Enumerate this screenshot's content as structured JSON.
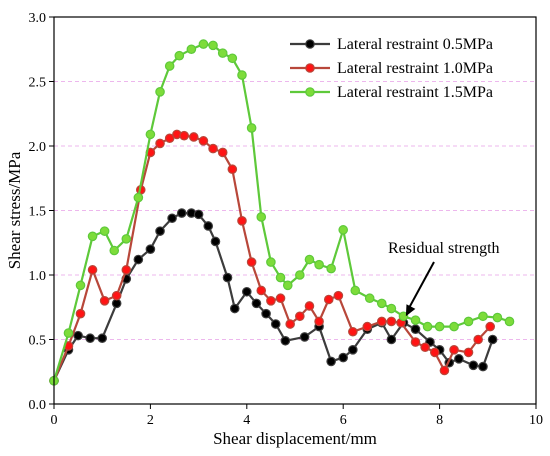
{
  "chart_data": {
    "type": "line",
    "title": "",
    "xlabel": "Shear displacement/mm",
    "ylabel": "Shear stress/MPa",
    "xlim": [
      0,
      10
    ],
    "ylim": [
      0,
      3.0
    ],
    "x_ticks": [
      "0",
      "2",
      "4",
      "6",
      "8",
      "10"
    ],
    "y_ticks": [
      "0.0",
      "0.5",
      "1.0",
      "1.5",
      "2.0",
      "2.5",
      "3.0"
    ],
    "grid": "horizontal dashed",
    "legend_position": "top-right",
    "annotations": [
      {
        "text": "Residual strength",
        "points_to": {
          "x": 7.3,
          "y": 0.68
        }
      }
    ],
    "series": [
      {
        "name": "Lateral restraint 0.5MPa",
        "color": "#3c3c3c",
        "marker_fill": "#000000",
        "x": [
          0.0,
          0.3,
          0.5,
          0.75,
          1.0,
          1.3,
          1.5,
          1.75,
          2.0,
          2.2,
          2.45,
          2.65,
          2.85,
          3.0,
          3.2,
          3.35,
          3.6,
          3.75,
          4.0,
          4.2,
          4.4,
          4.6,
          4.8,
          5.2,
          5.5,
          5.75,
          6.0,
          6.2,
          6.5,
          6.8,
          7.0,
          7.25,
          7.5,
          7.8,
          8.0,
          8.2,
          8.4,
          8.7,
          8.9,
          9.1
        ],
        "y": [
          0.18,
          0.42,
          0.53,
          0.51,
          0.51,
          0.78,
          0.97,
          1.12,
          1.2,
          1.34,
          1.44,
          1.48,
          1.48,
          1.47,
          1.38,
          1.26,
          0.98,
          0.74,
          0.87,
          0.78,
          0.7,
          0.62,
          0.49,
          0.52,
          0.6,
          0.33,
          0.36,
          0.42,
          0.58,
          0.63,
          0.5,
          0.63,
          0.58,
          0.48,
          0.42,
          0.32,
          0.35,
          0.3,
          0.29,
          0.5
        ]
      },
      {
        "name": "Lateral restraint 1.0MPa",
        "color": "#b8473a",
        "marker_fill": "#ff1414",
        "x": [
          0.0,
          0.3,
          0.55,
          0.8,
          1.05,
          1.3,
          1.5,
          1.8,
          2.0,
          2.2,
          2.4,
          2.55,
          2.7,
          2.9,
          3.1,
          3.3,
          3.5,
          3.7,
          3.9,
          4.1,
          4.3,
          4.5,
          4.7,
          4.9,
          5.1,
          5.3,
          5.5,
          5.7,
          5.9,
          6.2,
          6.5,
          6.8,
          7.0,
          7.2,
          7.5,
          7.7,
          7.9,
          8.1,
          8.3,
          8.6,
          8.8,
          9.05
        ],
        "y": [
          0.18,
          0.45,
          0.7,
          1.04,
          0.8,
          0.84,
          1.04,
          1.66,
          1.95,
          2.02,
          2.06,
          2.09,
          2.08,
          2.07,
          2.04,
          1.98,
          1.95,
          1.82,
          1.42,
          1.1,
          0.88,
          0.8,
          0.82,
          0.62,
          0.68,
          0.76,
          0.64,
          0.81,
          0.84,
          0.56,
          0.6,
          0.64,
          0.64,
          0.63,
          0.48,
          0.44,
          0.4,
          0.26,
          0.42,
          0.4,
          0.5,
          0.6
        ]
      },
      {
        "name": "Lateral restraint 1.5MPa",
        "color": "#5ec93a",
        "marker_fill": "#7ddc3a",
        "x": [
          0.0,
          0.3,
          0.55,
          0.8,
          1.05,
          1.25,
          1.5,
          1.75,
          2.0,
          2.2,
          2.4,
          2.6,
          2.85,
          3.1,
          3.3,
          3.5,
          3.7,
          3.9,
          4.1,
          4.3,
          4.5,
          4.7,
          4.85,
          5.1,
          5.3,
          5.5,
          5.75,
          6.0,
          6.25,
          6.55,
          6.8,
          7.0,
          7.25,
          7.5,
          7.75,
          8.0,
          8.3,
          8.6,
          8.9,
          9.2,
          9.45
        ],
        "y": [
          0.18,
          0.55,
          0.92,
          1.3,
          1.34,
          1.19,
          1.28,
          1.6,
          2.09,
          2.42,
          2.62,
          2.7,
          2.75,
          2.79,
          2.78,
          2.72,
          2.68,
          2.55,
          2.14,
          1.45,
          1.1,
          0.98,
          0.92,
          1.0,
          1.12,
          1.08,
          1.05,
          1.35,
          0.88,
          0.82,
          0.78,
          0.74,
          0.68,
          0.65,
          0.6,
          0.6,
          0.6,
          0.64,
          0.68,
          0.67,
          0.64
        ]
      }
    ]
  }
}
